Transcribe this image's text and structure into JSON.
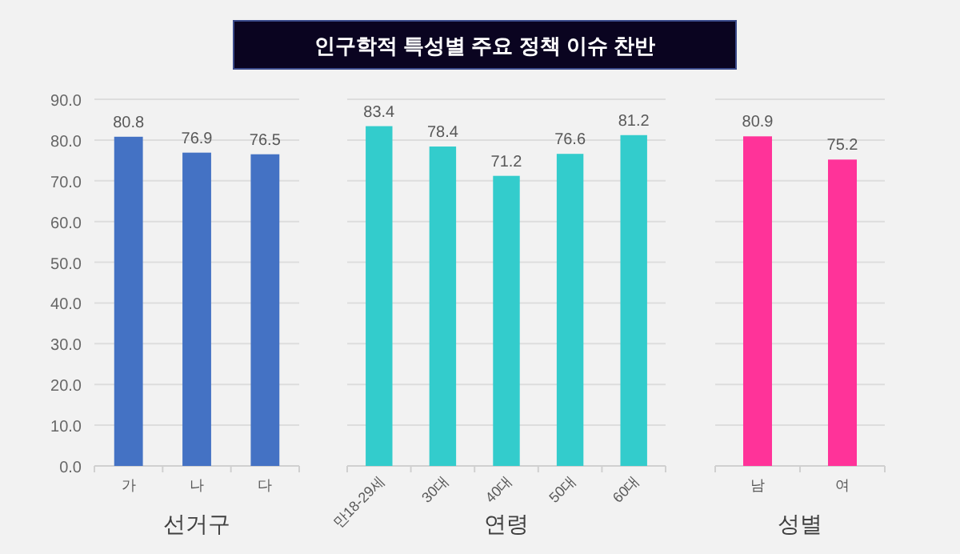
{
  "chart_data": [
    {
      "type": "bar",
      "xlabel": "선거구",
      "categories": [
        "가",
        "나",
        "다"
      ],
      "values": [
        80.8,
        76.9,
        76.5
      ],
      "color": "#4472c4",
      "ylim": [
        0,
        90
      ],
      "yticks": [
        {
          "value": 0,
          "label": "0.0"
        },
        {
          "value": 10,
          "label": "10.0"
        },
        {
          "value": 20,
          "label": "20.0"
        },
        {
          "value": 30,
          "label": "30.0"
        },
        {
          "value": 40,
          "label": "40.0"
        },
        {
          "value": 50,
          "label": "50.0"
        },
        {
          "value": 60,
          "label": "60.0"
        },
        {
          "value": 70,
          "label": "70.0"
        },
        {
          "value": 80,
          "label": "80.0"
        },
        {
          "value": 90,
          "label": "90.0"
        }
      ],
      "grid": "y",
      "data_labels": true
    },
    {
      "type": "bar",
      "title": "인구학적 특성별 주요 정책 이슈 찬반",
      "xlabel": "연령",
      "categories": [
        "만18-29세",
        "30대",
        "40대",
        "50대",
        "60대"
      ],
      "values": [
        83.4,
        78.4,
        71.2,
        76.6,
        81.2
      ],
      "color": "#33cccc",
      "ylim": [
        0,
        90
      ],
      "yticks": [
        0,
        10,
        20,
        30,
        40,
        50,
        60,
        70,
        80,
        90
      ],
      "grid": "y",
      "data_labels": true,
      "tick_labels": "x"
    },
    {
      "type": "bar",
      "xlabel": "성별",
      "categories": [
        "남",
        "여"
      ],
      "values": [
        80.9,
        75.2
      ],
      "color": "#ff3399",
      "ylim": [
        0,
        90
      ],
      "yticks": [
        0,
        10,
        20,
        30,
        40,
        50,
        60,
        70,
        80,
        90
      ],
      "grid": "y",
      "data_labels": true,
      "tick_labels": "x"
    }
  ]
}
